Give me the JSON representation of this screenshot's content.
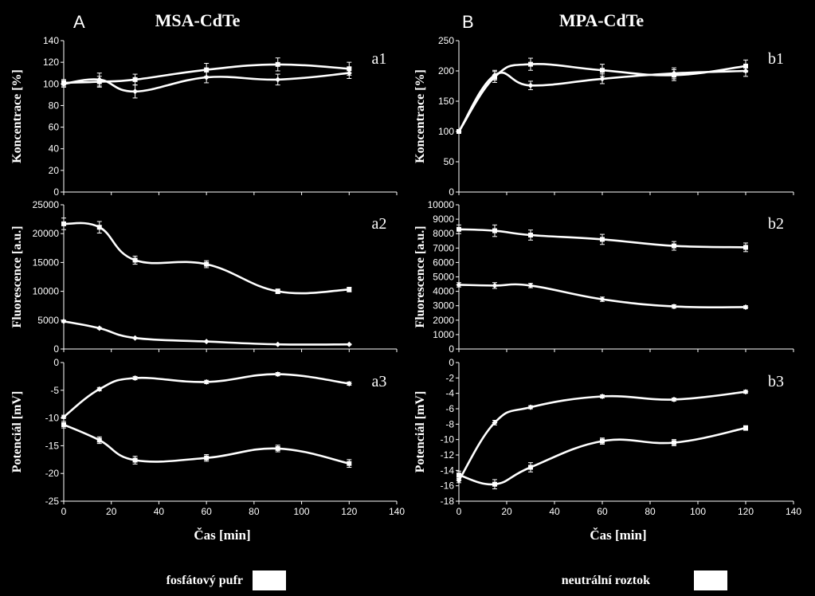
{
  "figure": {
    "left_label": "A",
    "left_title": "MSA-CdTe",
    "right_label": "B",
    "right_title": "MPA-CdTe",
    "legend": [
      {
        "label": "fosfátový  pufr",
        "color": "#ffffff"
      },
      {
        "label": "neutrální  roztok",
        "color": "#ffffff"
      }
    ]
  },
  "chart_data": [
    {
      "id": "a1",
      "type": "line",
      "label": "a1",
      "ylabel": "Koncentrace [%]",
      "xlabel": "",
      "ylim": [
        0,
        140
      ],
      "yticks": [
        0,
        20,
        40,
        60,
        80,
        100,
        120,
        140
      ],
      "xlim": [
        0,
        140
      ],
      "xticks": [
        0,
        20,
        40,
        60,
        80,
        100,
        120,
        140
      ],
      "show_xticks": false,
      "x": [
        0,
        15,
        30,
        60,
        90,
        120
      ],
      "series": [
        {
          "name": "fosfátový pufr",
          "marker": "diamond",
          "values": [
            100,
            104,
            93,
            106,
            104,
            110
          ],
          "errors": [
            3,
            6,
            6,
            5,
            5,
            5
          ]
        },
        {
          "name": "neutrální roztok",
          "marker": "square",
          "values": [
            101,
            102,
            104,
            113,
            118,
            114
          ],
          "errors": [
            3,
            5,
            5,
            6,
            6,
            6
          ]
        }
      ]
    },
    {
      "id": "a2",
      "type": "line",
      "label": "a2",
      "ylabel": "Fluorescence [a.u.]",
      "xlabel": "",
      "ylim": [
        0,
        25000
      ],
      "yticks": [
        0,
        5000,
        10000,
        15000,
        20000,
        25000
      ],
      "xlim": [
        0,
        140
      ],
      "xticks": [
        0,
        20,
        40,
        60,
        80,
        100,
        120,
        140
      ],
      "show_xticks": false,
      "x": [
        0,
        15,
        30,
        60,
        90,
        120
      ],
      "series": [
        {
          "name": "fosfátový pufr",
          "marker": "square",
          "values": [
            21700,
            21100,
            15400,
            14700,
            10000,
            10300
          ],
          "errors": [
            1000,
            1000,
            700,
            600,
            400,
            400
          ]
        },
        {
          "name": "neutrální roztok",
          "marker": "diamond",
          "values": [
            4800,
            3600,
            1900,
            1300,
            800,
            800
          ],
          "errors": [
            200,
            150,
            100,
            100,
            80,
            80
          ]
        }
      ]
    },
    {
      "id": "a3",
      "type": "line",
      "label": "a3",
      "ylabel": "Potenciál [mV]",
      "xlabel": "Čas [min]",
      "ylim": [
        -25,
        0
      ],
      "yticks": [
        -25,
        -20,
        -15,
        -10,
        -5,
        0
      ],
      "xlim": [
        0,
        140
      ],
      "xticks": [
        0,
        20,
        40,
        60,
        80,
        100,
        120,
        140
      ],
      "show_xticks": true,
      "x": [
        0,
        15,
        30,
        60,
        90,
        120
      ],
      "series": [
        {
          "name": "fosfátový pufr",
          "marker": "square",
          "values": [
            -11.2,
            -14.0,
            -17.6,
            -17.2,
            -15.5,
            -18.2
          ],
          "errors": [
            0.6,
            0.6,
            0.7,
            0.6,
            0.6,
            0.7
          ]
        },
        {
          "name": "neutrální roztok",
          "marker": "diamond",
          "values": [
            -9.8,
            -4.8,
            -2.8,
            -3.5,
            -2.1,
            -3.8
          ],
          "errors": [
            0.3,
            0.3,
            0.3,
            0.3,
            0.3,
            0.3
          ]
        }
      ]
    },
    {
      "id": "b1",
      "type": "line",
      "label": "b1",
      "ylabel": "Koncentrace [%]",
      "xlabel": "",
      "ylim": [
        0,
        250
      ],
      "yticks": [
        0,
        50,
        100,
        150,
        200,
        250
      ],
      "xlim": [
        0,
        140
      ],
      "xticks": [
        0,
        20,
        40,
        60,
        80,
        100,
        120,
        140
      ],
      "show_xticks": false,
      "x": [
        0,
        15,
        30,
        60,
        90,
        120
      ],
      "series": [
        {
          "name": "fosfátový pufr",
          "marker": "diamond",
          "values": [
            100,
            193,
            176,
            187,
            196,
            200
          ],
          "errors": [
            3,
            8,
            7,
            8,
            9,
            9
          ]
        },
        {
          "name": "neutrální roztok",
          "marker": "square",
          "values": [
            100,
            190,
            211,
            201,
            193,
            208
          ],
          "errors": [
            3,
            9,
            10,
            10,
            9,
            10
          ]
        }
      ]
    },
    {
      "id": "b2",
      "type": "line",
      "label": "b2",
      "ylabel": "Fluorescence [a.u.]",
      "xlabel": "",
      "ylim": [
        0,
        10000
      ],
      "yticks": [
        0,
        1000,
        2000,
        3000,
        4000,
        5000,
        6000,
        7000,
        8000,
        9000,
        10000
      ],
      "xlim": [
        0,
        140
      ],
      "xticks": [
        0,
        20,
        40,
        60,
        80,
        100,
        120,
        140
      ],
      "show_xticks": false,
      "x": [
        0,
        15,
        30,
        60,
        90,
        120
      ],
      "series": [
        {
          "name": "fosfátový pufr",
          "marker": "square",
          "values": [
            8300,
            8200,
            7900,
            7600,
            7150,
            7050
          ],
          "errors": [
            300,
            400,
            350,
            350,
            300,
            300
          ]
        },
        {
          "name": "neutrální roztok",
          "marker": "diamond",
          "values": [
            4450,
            4400,
            4400,
            3450,
            2950,
            2900
          ],
          "errors": [
            150,
            200,
            150,
            150,
            120,
            100
          ]
        }
      ]
    },
    {
      "id": "b3",
      "type": "line",
      "label": "b3",
      "ylabel": "Potenciál [mV]",
      "xlabel": "Čas [min]",
      "ylim": [
        -18,
        0
      ],
      "yticks": [
        -18,
        -16,
        -14,
        -12,
        -10,
        -8,
        -6,
        -4,
        -2,
        0
      ],
      "xlim": [
        0,
        140
      ],
      "xticks": [
        0,
        20,
        40,
        60,
        80,
        100,
        120,
        140
      ],
      "show_xticks": true,
      "x": [
        0,
        15,
        30,
        60,
        90,
        120
      ],
      "series": [
        {
          "name": "fosfátový pufr",
          "marker": "square",
          "values": [
            -14.6,
            -15.8,
            -13.6,
            -10.2,
            -10.4,
            -8.5
          ],
          "errors": [
            0.5,
            0.6,
            0.6,
            0.4,
            0.4,
            0.3
          ]
        },
        {
          "name": "neutrální roztok",
          "marker": "diamond",
          "values": [
            -15.3,
            -7.8,
            -5.8,
            -4.4,
            -4.8,
            -3.8
          ],
          "errors": [
            0.3,
            0.3,
            0.2,
            0.2,
            0.2,
            0.2
          ]
        }
      ]
    }
  ]
}
